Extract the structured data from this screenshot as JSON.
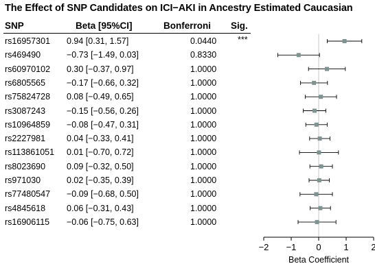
{
  "chart_data": {
    "type": "forest",
    "title": "The Effect of SNP Candidates on ICI−AKI in Ancestry Estimated Caucasian",
    "columns": {
      "snp": "SNP",
      "beta": "Beta [95%CI]",
      "bonferroni": "Bonferroni",
      "sig": "Sig."
    },
    "rows": [
      {
        "snp": "rs16957301",
        "beta_text": "0.94 [0.31, 1.57]",
        "bonferroni": "0.0440",
        "sig": "***",
        "beta": 0.94,
        "lo": 0.31,
        "hi": 1.57
      },
      {
        "snp": "rs469490",
        "beta_text": "−0.73 [−1.49, 0.03]",
        "bonferroni": "0.8330",
        "sig": "",
        "beta": -0.73,
        "lo": -1.49,
        "hi": 0.03
      },
      {
        "snp": "rs60970102",
        "beta_text": "0.30 [−0.37, 0.97]",
        "bonferroni": "1.0000",
        "sig": "",
        "beta": 0.3,
        "lo": -0.37,
        "hi": 0.97
      },
      {
        "snp": "rs6805565",
        "beta_text": "−0.17 [−0.66, 0.32]",
        "bonferroni": "1.0000",
        "sig": "",
        "beta": -0.17,
        "lo": -0.66,
        "hi": 0.32
      },
      {
        "snp": "rs75824728",
        "beta_text": "0.08 [−0.49, 0.65]",
        "bonferroni": "1.0000",
        "sig": "",
        "beta": 0.08,
        "lo": -0.49,
        "hi": 0.65
      },
      {
        "snp": "rs3087243",
        "beta_text": "−0.15 [−0.56, 0.26]",
        "bonferroni": "1.0000",
        "sig": "",
        "beta": -0.15,
        "lo": -0.56,
        "hi": 0.26
      },
      {
        "snp": "rs10964859",
        "beta_text": "−0.08 [−0.47, 0.31]",
        "bonferroni": "1.0000",
        "sig": "",
        "beta": -0.08,
        "lo": -0.47,
        "hi": 0.31
      },
      {
        "snp": "rs2227981",
        "beta_text": "0.04 [−0.33, 0.41]",
        "bonferroni": "1.0000",
        "sig": "",
        "beta": 0.04,
        "lo": -0.33,
        "hi": 0.41
      },
      {
        "snp": "rs113861051",
        "beta_text": "0.01 [−0.70, 0.72]",
        "bonferroni": "1.0000",
        "sig": "",
        "beta": 0.01,
        "lo": -0.7,
        "hi": 0.72
      },
      {
        "snp": "rs8023690",
        "beta_text": "0.09 [−0.32, 0.50]",
        "bonferroni": "1.0000",
        "sig": "",
        "beta": 0.09,
        "lo": -0.32,
        "hi": 0.5
      },
      {
        "snp": "rs971030",
        "beta_text": "0.02 [−0.35, 0.39]",
        "bonferroni": "1.0000",
        "sig": "",
        "beta": 0.02,
        "lo": -0.35,
        "hi": 0.39
      },
      {
        "snp": "rs77480547",
        "beta_text": "−0.09 [−0.68, 0.50]",
        "bonferroni": "1.0000",
        "sig": "",
        "beta": -0.09,
        "lo": -0.68,
        "hi": 0.5
      },
      {
        "snp": "rs4845618",
        "beta_text": "0.06 [−0.31, 0.43]",
        "bonferroni": "1.0000",
        "sig": "",
        "beta": 0.06,
        "lo": -0.31,
        "hi": 0.43
      },
      {
        "snp": "rs16906115",
        "beta_text": "−0.06 [−0.75, 0.63]",
        "bonferroni": "1.0000",
        "sig": "",
        "beta": -0.06,
        "lo": -0.75,
        "hi": 0.63
      }
    ],
    "xaxis": {
      "label": "Beta Coefficient",
      "range": [
        -2,
        2
      ],
      "ticks": [
        -2,
        -1,
        0,
        1,
        2
      ],
      "tick_labels": [
        "−2",
        "−1",
        "0",
        "1",
        "2"
      ]
    },
    "reference_line": 0,
    "grid": false,
    "colors": {
      "point": "#7f9392",
      "ci_line": "#000000",
      "ref_line": "#d4d4d4"
    }
  }
}
